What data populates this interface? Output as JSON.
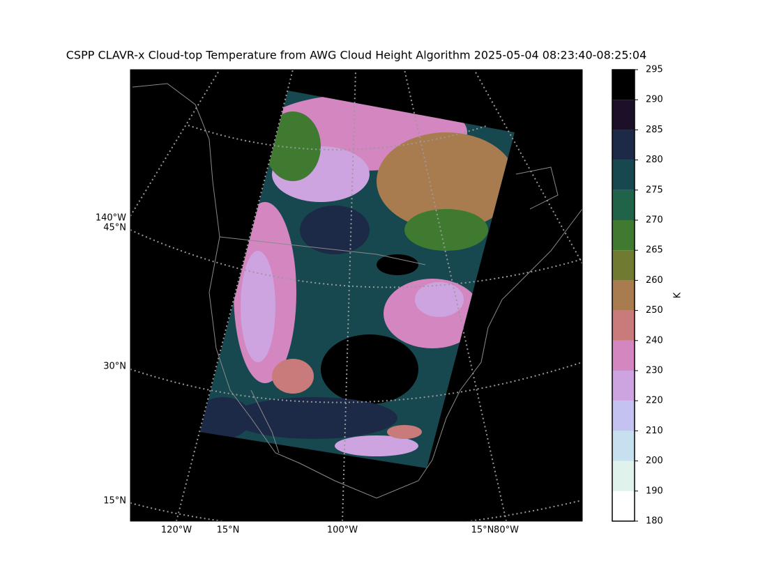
{
  "title": "CSPP CLAVR-x Cloud-top Temperature from AWG Cloud Height Algorithm 2025-05-04 08:23:40-08:25:04",
  "map": {
    "left_labels": [
      "140°W",
      "45°N",
      "30°N",
      "15°N"
    ],
    "bottom_labels": [
      "120°W",
      "15°N",
      "100°W",
      "15°N",
      "80°W"
    ]
  },
  "colorbar": {
    "label": "K",
    "ticks": [
      180,
      190,
      200,
      210,
      220,
      230,
      240,
      250,
      260,
      265,
      270,
      275,
      280,
      285,
      290,
      295
    ],
    "colors": [
      "#ffffff",
      "#dff3ec",
      "#c6e0f0",
      "#c4c2f0",
      "#cda4e0",
      "#d486c0",
      "#c97a7a",
      "#a87c4f",
      "#707a30",
      "#3f7a30",
      "#1f6448",
      "#174850",
      "#1c2a48",
      "#1c1028",
      "#000000"
    ]
  }
}
